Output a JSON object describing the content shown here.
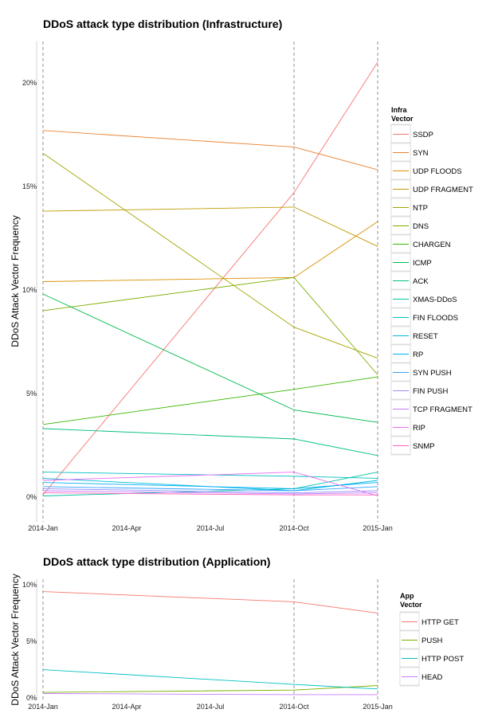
{
  "chart_data": [
    {
      "type": "line",
      "title": "DDoS attack type distribution (Infrastructure)",
      "ylabel": "DDoS Attack Vector Frequency",
      "xlabel": "",
      "x_ticks": [
        "2014-Jan",
        "2014-Apr",
        "2014-Jul",
        "2014-Oct",
        "2015-Jan"
      ],
      "y_ticks": [
        "0%",
        "5%",
        "10%",
        "15%",
        "20%"
      ],
      "ylim": [
        -1.2,
        22
      ],
      "x": [
        "2014-Jan",
        "2014-Oct",
        "2015-Jan"
      ],
      "vertical_dashed_lines_at": [
        "2014-Jan",
        "2014-Oct",
        "2015-Jan"
      ],
      "grid": false,
      "legend_title": "Infra Vector",
      "legend_position": "right",
      "series": [
        {
          "name": "SSDP",
          "color": "#F8766D",
          "values": [
            0.1,
            14.7,
            21.0
          ]
        },
        {
          "name": "SYN",
          "color": "#EA8331",
          "values": [
            17.7,
            16.9,
            15.8
          ]
        },
        {
          "name": "UDP FLOODS",
          "color": "#D89000",
          "values": [
            10.4,
            10.6,
            13.3
          ]
        },
        {
          "name": "UDP FRAGMENT",
          "color": "#C09B00",
          "values": [
            13.8,
            14.0,
            12.1
          ]
        },
        {
          "name": "NTP",
          "color": "#A3A500",
          "values": [
            16.6,
            8.2,
            6.7
          ]
        },
        {
          "name": "DNS",
          "color": "#7CAE00",
          "values": [
            9.0,
            10.6,
            5.9
          ]
        },
        {
          "name": "CHARGEN",
          "color": "#39B600",
          "values": [
            3.5,
            5.2,
            5.8
          ]
        },
        {
          "name": "ICMP",
          "color": "#00BB4E",
          "values": [
            9.8,
            4.2,
            3.6
          ]
        },
        {
          "name": "ACK",
          "color": "#00BF7D",
          "values": [
            3.3,
            2.8,
            2.0
          ]
        },
        {
          "name": "XMAS-DDoS",
          "color": "#00C1A3",
          "values": [
            0.05,
            0.4,
            1.2
          ]
        },
        {
          "name": "FIN FLOODS",
          "color": "#00BFC4",
          "values": [
            1.2,
            1.0,
            0.9
          ]
        },
        {
          "name": "RESET",
          "color": "#00BAE0",
          "values": [
            0.9,
            0.3,
            0.8
          ]
        },
        {
          "name": "RP",
          "color": "#00B0F6",
          "values": [
            0.7,
            0.4,
            0.7
          ]
        },
        {
          "name": "SYN PUSH",
          "color": "#35A2FF",
          "values": [
            0.5,
            0.3,
            0.5
          ]
        },
        {
          "name": "FIN PUSH",
          "color": "#9590FF",
          "values": [
            0.4,
            0.2,
            0.3
          ]
        },
        {
          "name": "TCP FRAGMENT",
          "color": "#C77CFF",
          "values": [
            0.3,
            0.15,
            0.2
          ]
        },
        {
          "name": "RIP",
          "color": "#E76BF3",
          "values": [
            0.8,
            1.2,
            0.05
          ]
        },
        {
          "name": "SNMP",
          "color": "#FF62BC",
          "values": [
            0.2,
            0.1,
            0.1
          ]
        }
      ]
    },
    {
      "type": "line",
      "title": "DDoS attack type distribution (Application)",
      "ylabel": "DDoS Attack Vector Frequency",
      "xlabel": "",
      "x_ticks": [
        "2014-Jan",
        "2014-Apr",
        "2014-Jul",
        "2014-Oct",
        "2015-Jan"
      ],
      "y_ticks": [
        "0%",
        "5%",
        "10%"
      ],
      "ylim": [
        -0.2,
        10.5
      ],
      "x": [
        "2014-Jan",
        "2014-Oct",
        "2015-Jan"
      ],
      "vertical_dashed_lines_at": [
        "2014-Jan",
        "2014-Oct",
        "2015-Jan"
      ],
      "grid": false,
      "legend_title": "App Vector",
      "legend_position": "right",
      "series": [
        {
          "name": "HTTP GET",
          "color": "#F8766D",
          "values": [
            9.4,
            8.5,
            7.5
          ]
        },
        {
          "name": "PUSH",
          "color": "#7CAE00",
          "values": [
            0.5,
            0.7,
            1.1
          ]
        },
        {
          "name": "HTTP POST",
          "color": "#00BFC4",
          "values": [
            2.5,
            1.2,
            0.8
          ]
        },
        {
          "name": "HEAD",
          "color": "#C77CFF",
          "values": [
            0.4,
            0.3,
            0.3
          ]
        }
      ]
    }
  ]
}
